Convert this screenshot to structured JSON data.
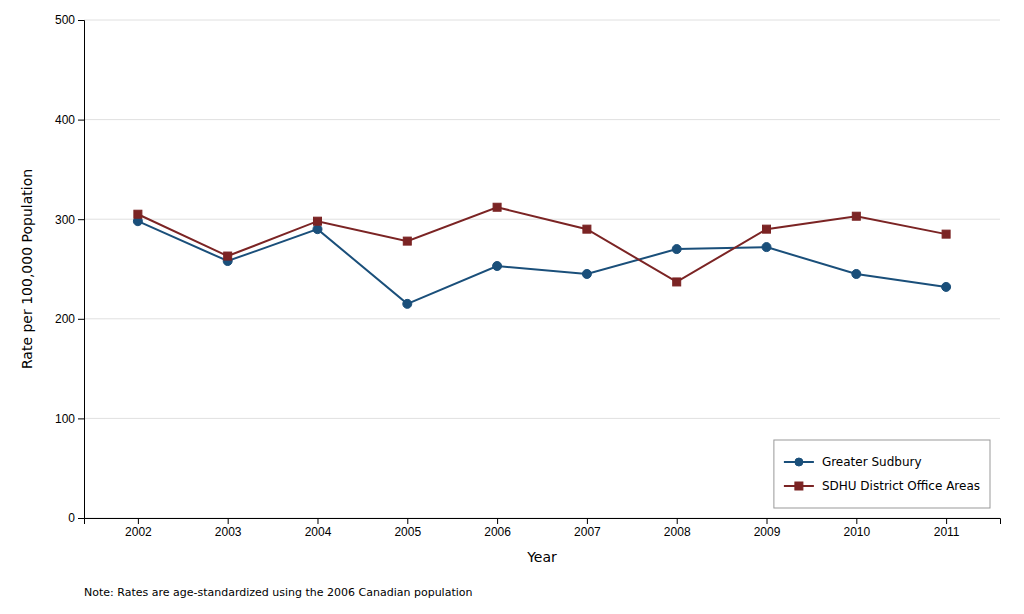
{
  "chart_data": {
    "type": "line",
    "x_label": "Year",
    "y_label": "Rate per 100,000 Population",
    "annotations": [
      "Note: Rates are age-standardized using the 2006 Canadian population"
    ],
    "x": [
      2002,
      2003,
      2004,
      2005,
      2006,
      2007,
      2008,
      2009,
      2010,
      2011
    ],
    "series": [
      {
        "name": "Greater Sudbury",
        "color": "#1a4f7a",
        "marker": "circle",
        "values": [
          298,
          258,
          290,
          215,
          253,
          245,
          270,
          272,
          245,
          232
        ]
      },
      {
        "name": "SDHU District Office Areas",
        "color": "#7b2424",
        "marker": "square",
        "values": [
          305,
          263,
          298,
          278,
          312,
          290,
          237,
          290,
          303,
          285
        ]
      }
    ],
    "xlim": [
      2001.4,
      2011.6
    ],
    "xticks": [
      2002,
      2003,
      2004,
      2005,
      2006,
      2007,
      2008,
      2009,
      2010,
      2011
    ],
    "ylim": [
      0,
      500
    ],
    "yticks": [
      0,
      100,
      200,
      300,
      400,
      500
    ],
    "grid": true,
    "legend": "lower right"
  }
}
